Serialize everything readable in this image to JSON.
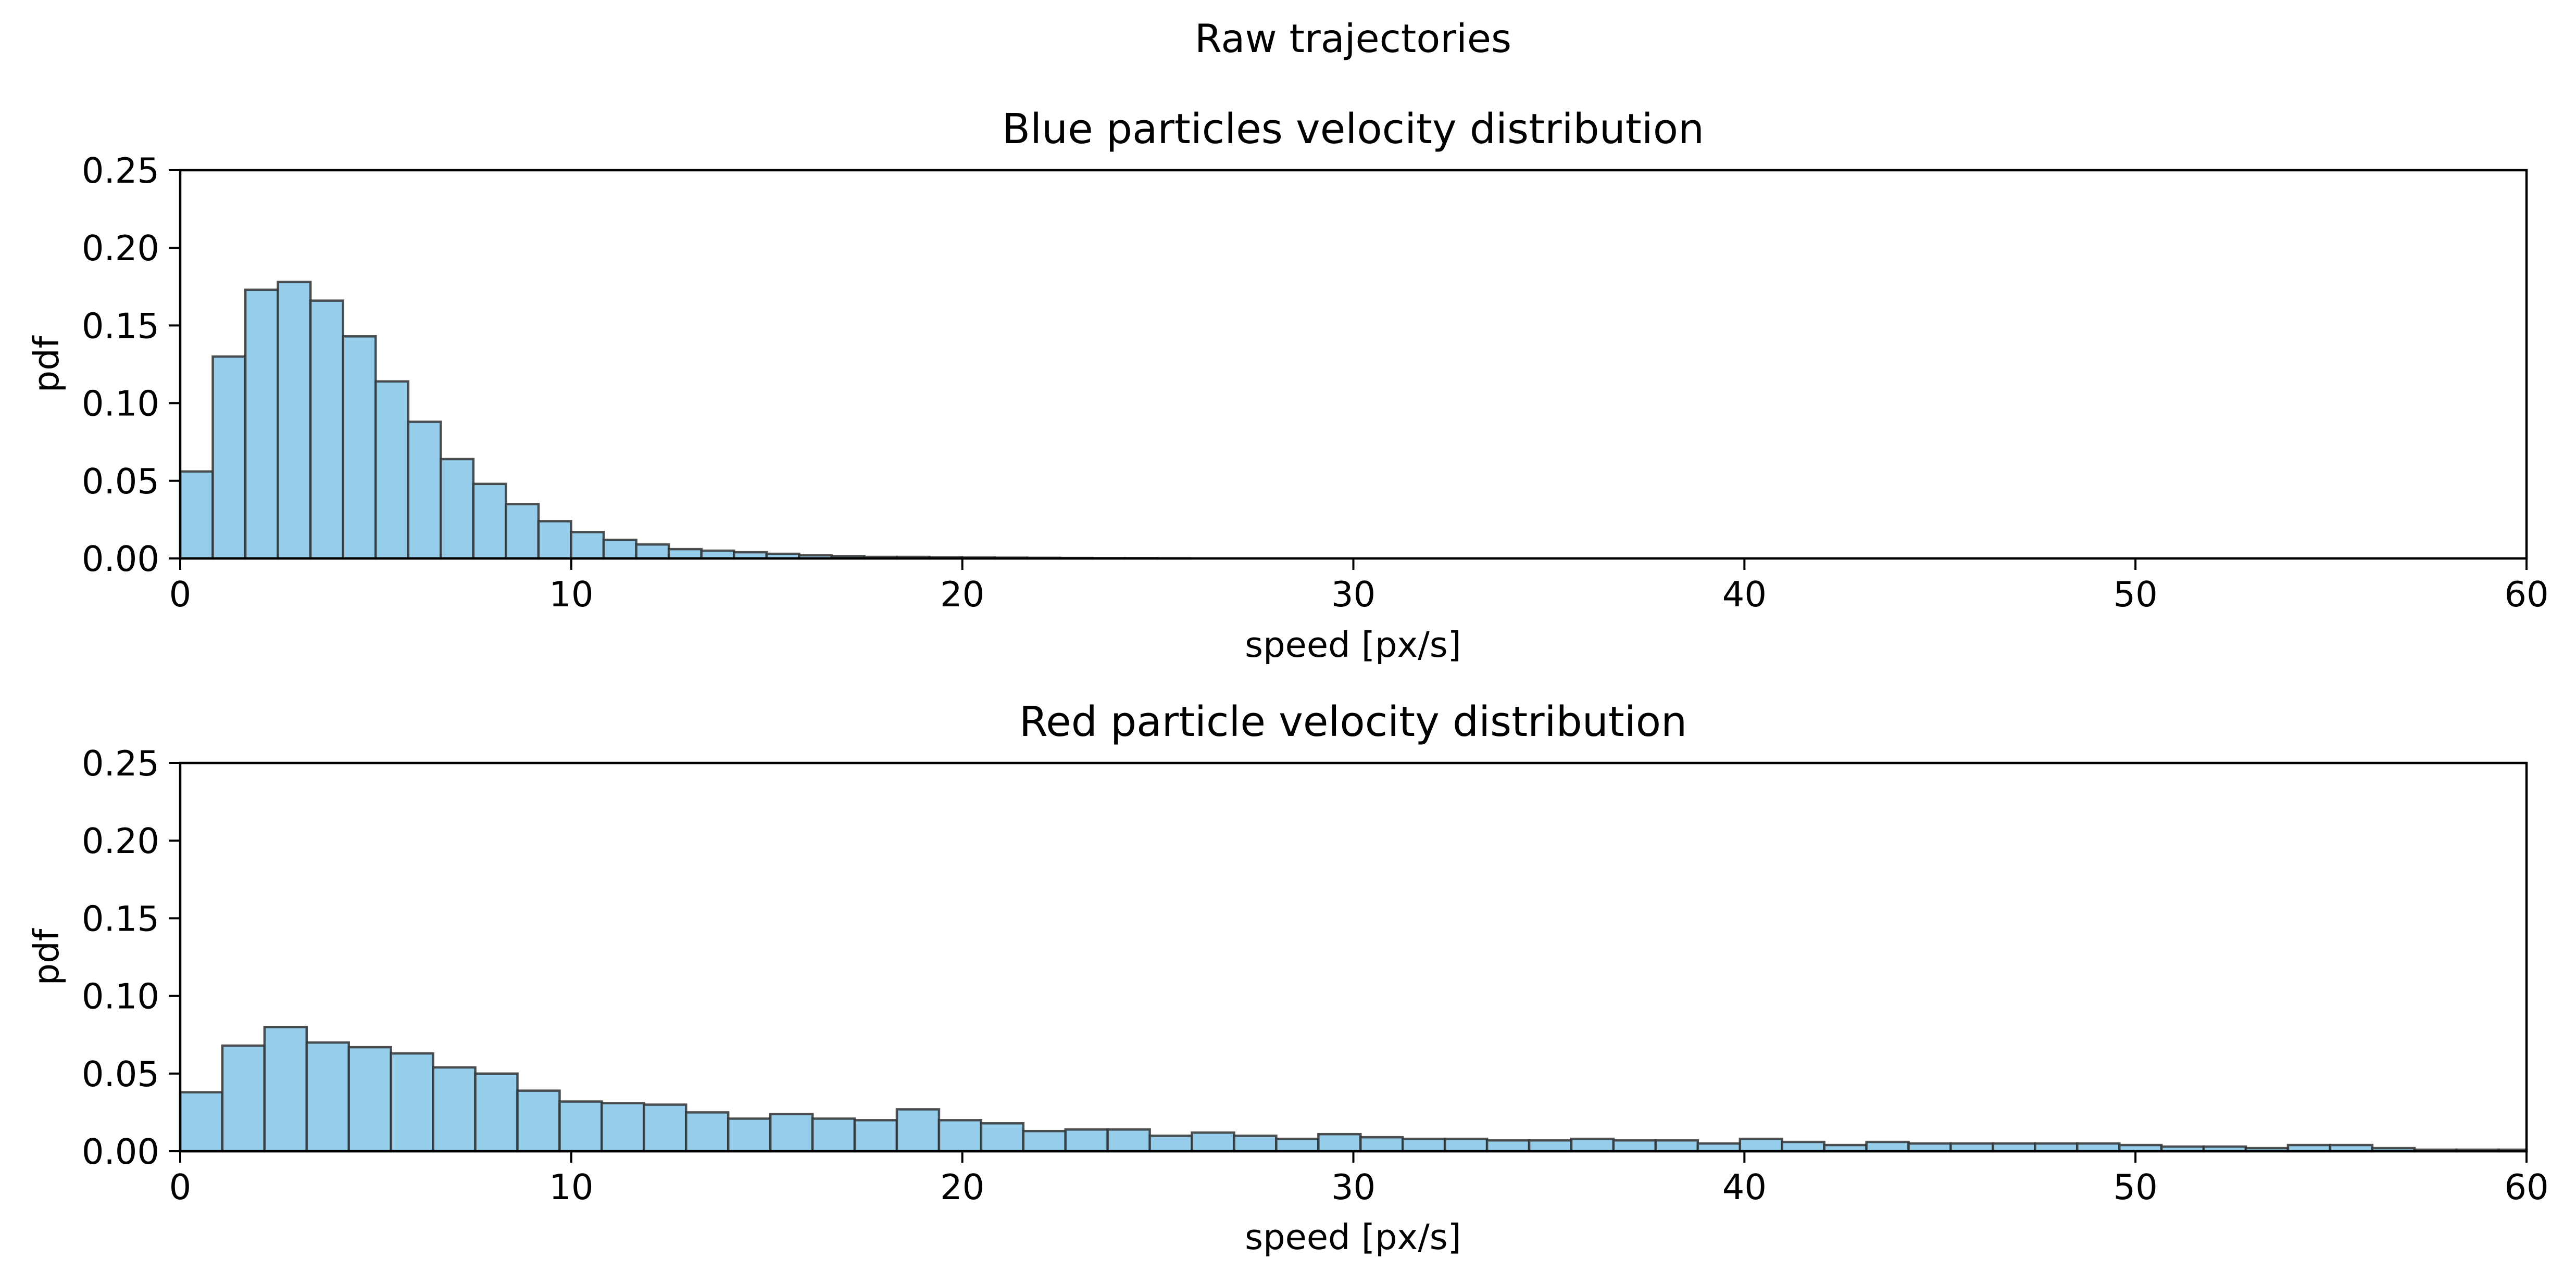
{
  "figure": {
    "suptitle": "Raw trajectories",
    "colors": {
      "bar_fill": "#95cdea",
      "bar_edge": "#333333",
      "axis": "#000000"
    }
  },
  "chart_data": [
    {
      "type": "bar",
      "title": "Blue particles velocity distribution",
      "xlabel": "speed [px/s]",
      "ylabel": "pdf",
      "xlim": [
        0,
        60
      ],
      "ylim": [
        0,
        0.25
      ],
      "xticks": [
        "0",
        "10",
        "20",
        "30",
        "40",
        "50",
        "60"
      ],
      "yticks": [
        "0.00",
        "0.05",
        "0.10",
        "0.15",
        "0.20",
        "0.25"
      ],
      "bin_width": 0.833,
      "bin_start": 0,
      "values": [
        0.056,
        0.13,
        0.173,
        0.178,
        0.166,
        0.143,
        0.114,
        0.088,
        0.064,
        0.048,
        0.035,
        0.024,
        0.017,
        0.012,
        0.009,
        0.006,
        0.005,
        0.004,
        0.003,
        0.002,
        0.0015,
        0.001,
        0.001,
        0.0008,
        0.0006,
        0.0005,
        0.0004,
        0.0003,
        0.0002,
        0.0002,
        0.0001
      ]
    },
    {
      "type": "bar",
      "title": "Red particle velocity distribution",
      "xlabel": "speed [px/s]",
      "ylabel": "pdf",
      "xlim": [
        0,
        60
      ],
      "ylim": [
        0,
        0.25
      ],
      "xticks": [
        "0",
        "10",
        "20",
        "30",
        "40",
        "50",
        "60"
      ],
      "yticks": [
        "0.00",
        "0.05",
        "0.10",
        "0.15",
        "0.20",
        "0.25"
      ],
      "bin_width": 1.078,
      "bin_start": 0,
      "values": [
        0.038,
        0.068,
        0.08,
        0.07,
        0.067,
        0.063,
        0.054,
        0.05,
        0.039,
        0.032,
        0.031,
        0.03,
        0.025,
        0.021,
        0.024,
        0.021,
        0.02,
        0.027,
        0.02,
        0.018,
        0.013,
        0.014,
        0.014,
        0.01,
        0.012,
        0.01,
        0.008,
        0.011,
        0.009,
        0.008,
        0.008,
        0.007,
        0.007,
        0.008,
        0.007,
        0.007,
        0.005,
        0.008,
        0.006,
        0.004,
        0.006,
        0.005,
        0.005,
        0.005,
        0.005,
        0.005,
        0.004,
        0.003,
        0.003,
        0.002,
        0.004,
        0.004,
        0.002,
        0.001,
        0.001,
        0.001,
        0.001
      ]
    }
  ]
}
